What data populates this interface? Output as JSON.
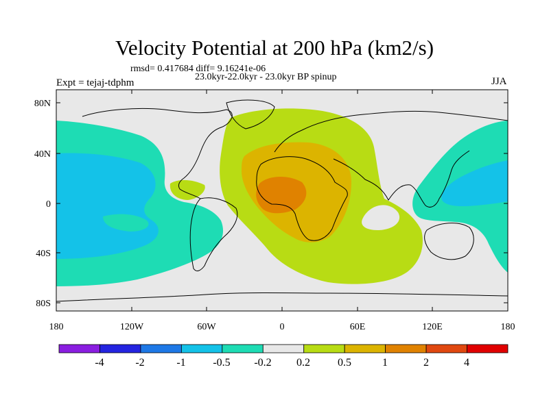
{
  "title": "Velocity Potential at 200 hPa (km2/s)",
  "stats_line": "rmsd= 0.417684 diff= 9.16241e-06",
  "subtitle": "23.0kyr-22.0kyr - 23.0kyr BP spinup",
  "experiment": "Expt = tejaj-tdphm",
  "season": "JJA",
  "y_axis_labels": [
    "80N",
    "40N",
    "0",
    "40S",
    "80S"
  ],
  "x_axis_labels": [
    "180",
    "120W",
    "60W",
    "0",
    "60E",
    "120E",
    "180"
  ],
  "colorbar": {
    "labels": [
      "-4",
      "-2",
      "-1",
      "-0.5",
      "-0.2",
      "0.2",
      "0.5",
      "1",
      "2",
      "4"
    ],
    "colors": [
      "#8a1ee0",
      "#2424e0",
      "#1e78e6",
      "#14c2e8",
      "#1edcb4",
      "#e8e8e8",
      "#b8dc14",
      "#dcb400",
      "#e08200",
      "#e04810",
      "#e00000"
    ]
  },
  "map_colors": {
    "neutral": "#e8e8e8",
    "neg_weak": "#1edcb4",
    "neg_mod": "#14c2e8",
    "pos_weak": "#b8dc14",
    "pos_mod": "#dcb400",
    "pos_strong": "#e08200"
  }
}
